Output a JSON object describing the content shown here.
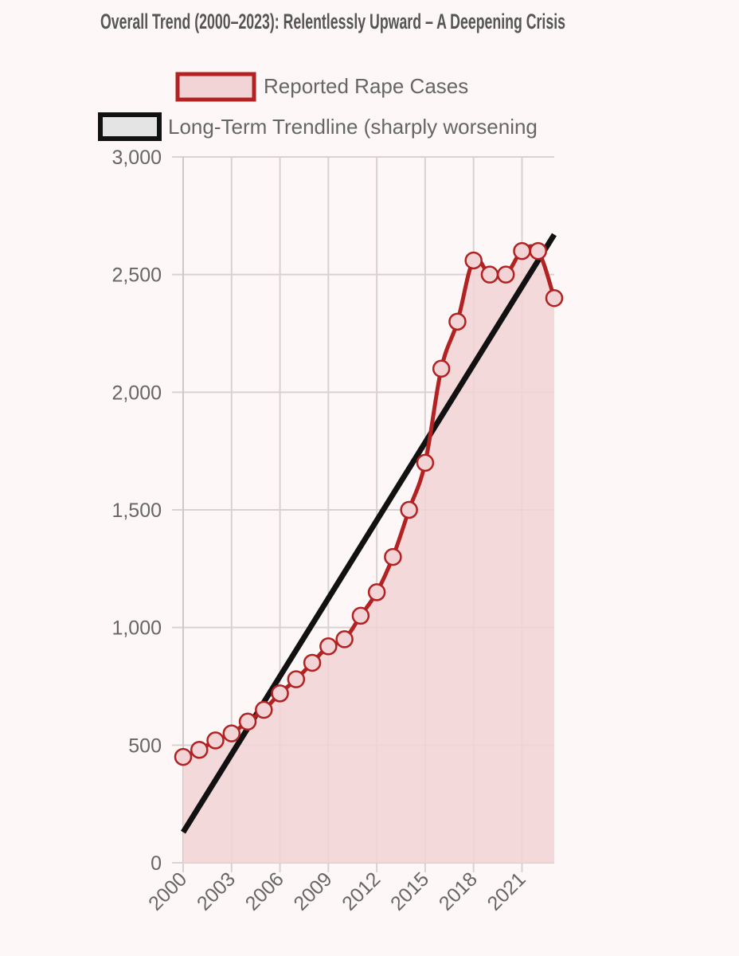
{
  "chart_data": {
    "type": "line",
    "title": "Overall Trend (2000–2023): Relentlessly Upward – A Deepening Crisis",
    "xlabel": "",
    "ylabel": "",
    "x": [
      2000,
      2001,
      2002,
      2003,
      2004,
      2005,
      2006,
      2007,
      2008,
      2009,
      2010,
      2011,
      2012,
      2013,
      2014,
      2015,
      2016,
      2017,
      2018,
      2019,
      2020,
      2021,
      2022,
      2023
    ],
    "xticks": [
      "2000",
      "2003",
      "2006",
      "2009",
      "2012",
      "2015",
      "2018",
      "2021"
    ],
    "yticks": [
      "0",
      "500",
      "1,000",
      "1,500",
      "2,000",
      "2,500",
      "3,000"
    ],
    "ylim": [
      0,
      3000
    ],
    "grid": true,
    "legend_position": "top-left",
    "series": [
      {
        "name": "Reported Rape Cases",
        "values": [
          450,
          480,
          520,
          550,
          600,
          650,
          720,
          780,
          850,
          920,
          950,
          1050,
          1150,
          1300,
          1500,
          1700,
          2100,
          2300,
          2560,
          2500,
          2500,
          2600,
          2600,
          2400
        ],
        "color": "#b22222",
        "fill": "#f2d4d6"
      },
      {
        "name": "Long-Term Trendline (sharply worsening",
        "start": 130,
        "end": 2670,
        "color": "#111111"
      }
    ]
  }
}
